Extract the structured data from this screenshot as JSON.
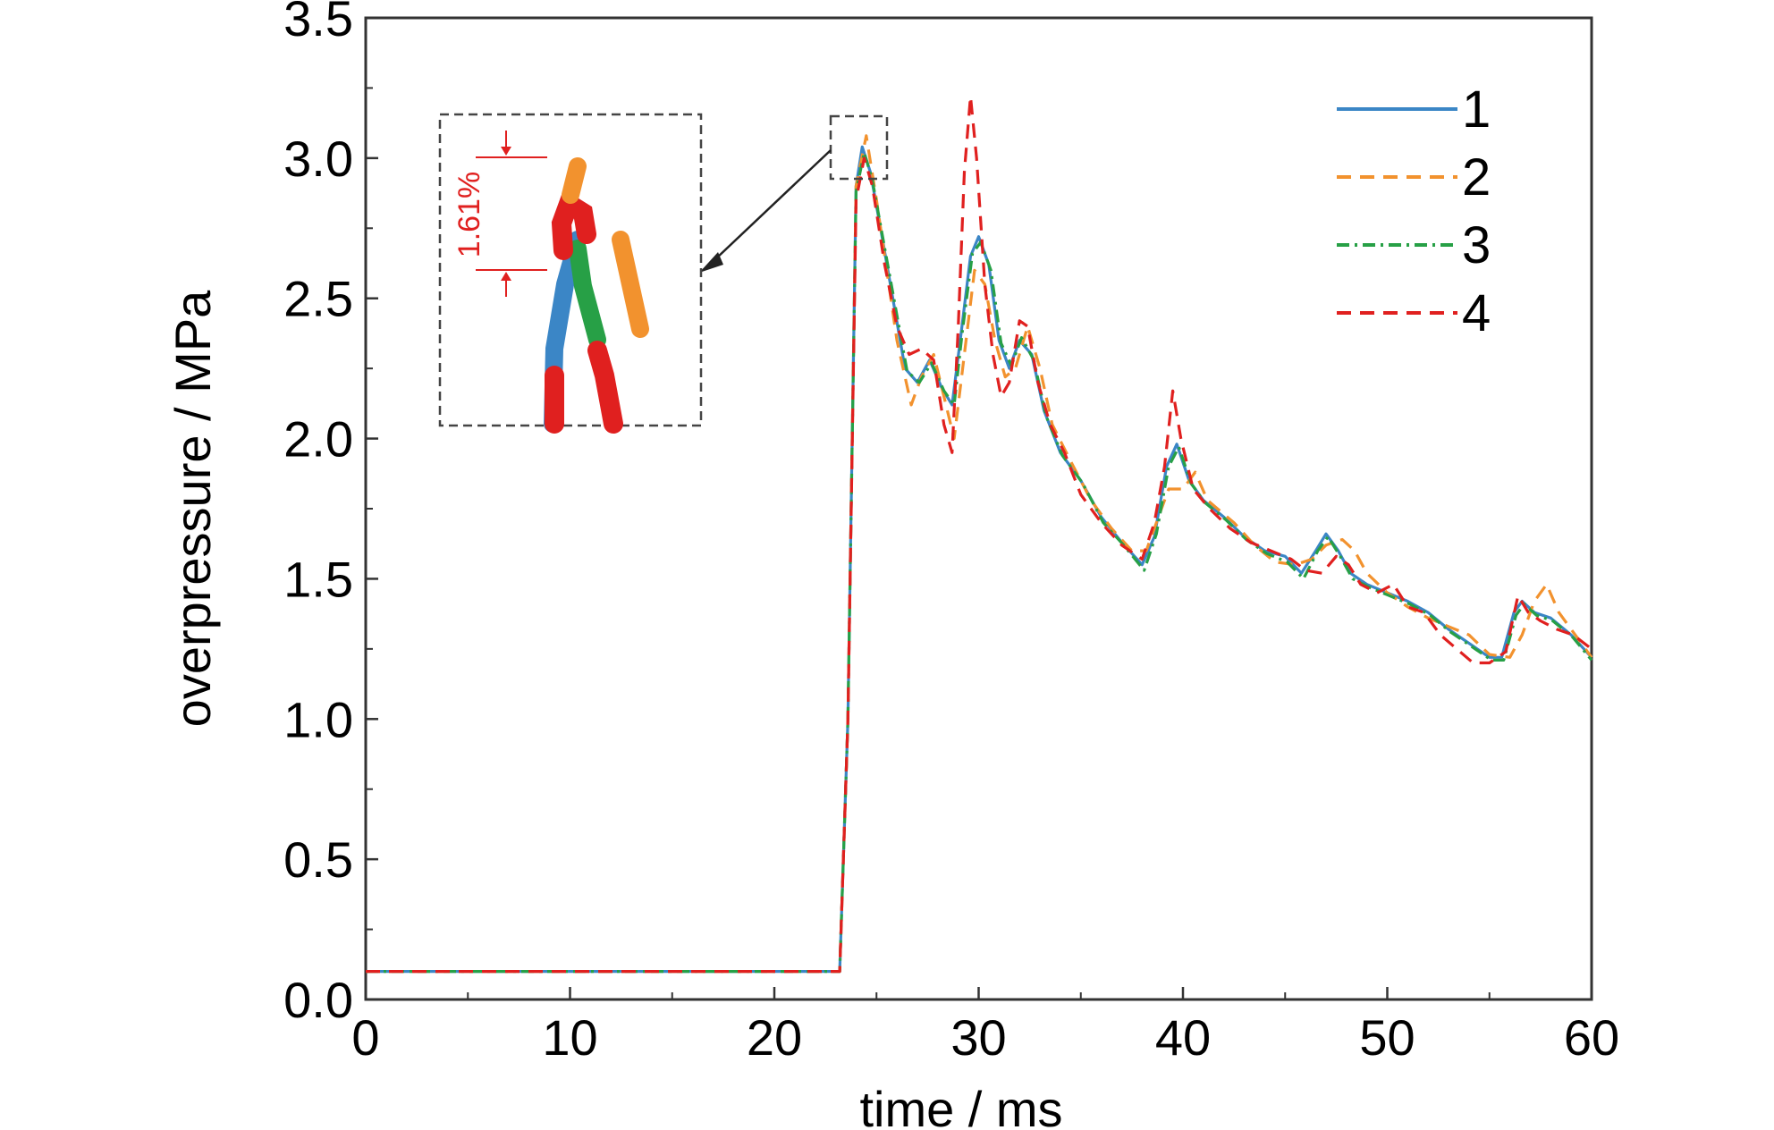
{
  "chart_data": {
    "type": "line",
    "xlabel": "time / ms",
    "ylabel": "overpressure / MPa",
    "xlim": [
      0,
      60
    ],
    "ylim": [
      0,
      3.5
    ],
    "xticks": [
      "0",
      "10",
      "20",
      "30",
      "40",
      "50",
      "60"
    ],
    "yticks": [
      "0.0",
      "0.5",
      "1.0",
      "1.5",
      "2.0",
      "2.5",
      "3.0",
      "3.5"
    ],
    "grid": false,
    "legend": "top-right",
    "series": [
      {
        "name": "1",
        "color": "#3b86c6",
        "dash": "solid",
        "points": [
          [
            0,
            0.1
          ],
          [
            23.2,
            0.1
          ],
          [
            23.6,
            1.0
          ],
          [
            24.0,
            2.9
          ],
          [
            24.3,
            3.04
          ],
          [
            24.7,
            2.95
          ],
          [
            25.2,
            2.75
          ],
          [
            25.8,
            2.5
          ],
          [
            26.4,
            2.25
          ],
          [
            27.0,
            2.2
          ],
          [
            27.6,
            2.28
          ],
          [
            28.2,
            2.18
          ],
          [
            28.7,
            2.12
          ],
          [
            29.1,
            2.35
          ],
          [
            29.6,
            2.65
          ],
          [
            30.0,
            2.72
          ],
          [
            30.5,
            2.62
          ],
          [
            31.0,
            2.35
          ],
          [
            31.5,
            2.25
          ],
          [
            32.0,
            2.35
          ],
          [
            32.6,
            2.3
          ],
          [
            33.2,
            2.1
          ],
          [
            34.0,
            1.95
          ],
          [
            35.0,
            1.85
          ],
          [
            36.0,
            1.72
          ],
          [
            37.0,
            1.63
          ],
          [
            38.0,
            1.55
          ],
          [
            38.6,
            1.65
          ],
          [
            39.2,
            1.9
          ],
          [
            39.7,
            1.98
          ],
          [
            40.3,
            1.85
          ],
          [
            41.0,
            1.78
          ],
          [
            42.0,
            1.72
          ],
          [
            43.0,
            1.65
          ],
          [
            44.0,
            1.6
          ],
          [
            45.0,
            1.58
          ],
          [
            45.8,
            1.52
          ],
          [
            46.5,
            1.6
          ],
          [
            47.0,
            1.66
          ],
          [
            47.6,
            1.6
          ],
          [
            48.2,
            1.52
          ],
          [
            49.0,
            1.48
          ],
          [
            50.0,
            1.45
          ],
          [
            51.0,
            1.42
          ],
          [
            52.0,
            1.38
          ],
          [
            53.0,
            1.32
          ],
          [
            54.0,
            1.27
          ],
          [
            55.0,
            1.22
          ],
          [
            55.6,
            1.22
          ],
          [
            56.2,
            1.38
          ],
          [
            56.6,
            1.42
          ],
          [
            57.2,
            1.38
          ],
          [
            58.0,
            1.36
          ],
          [
            59.0,
            1.3
          ],
          [
            60.0,
            1.22
          ]
        ]
      },
      {
        "name": "2",
        "color": "#f2922e",
        "dash": "dashed",
        "points": [
          [
            0,
            0.1
          ],
          [
            23.2,
            0.1
          ],
          [
            23.6,
            1.0
          ],
          [
            24.0,
            2.9
          ],
          [
            24.5,
            3.08
          ],
          [
            25.0,
            2.85
          ],
          [
            25.5,
            2.6
          ],
          [
            26.0,
            2.35
          ],
          [
            26.7,
            2.12
          ],
          [
            27.2,
            2.22
          ],
          [
            27.8,
            2.3
          ],
          [
            28.3,
            2.15
          ],
          [
            28.8,
            2.0
          ],
          [
            29.3,
            2.3
          ],
          [
            29.8,
            2.6
          ],
          [
            30.3,
            2.55
          ],
          [
            30.8,
            2.35
          ],
          [
            31.3,
            2.22
          ],
          [
            31.8,
            2.25
          ],
          [
            32.4,
            2.4
          ],
          [
            33.0,
            2.25
          ],
          [
            33.6,
            2.05
          ],
          [
            34.5,
            1.92
          ],
          [
            35.5,
            1.78
          ],
          [
            36.5,
            1.68
          ],
          [
            37.5,
            1.6
          ],
          [
            38.2,
            1.6
          ],
          [
            38.8,
            1.72
          ],
          [
            39.3,
            1.82
          ],
          [
            40.0,
            1.82
          ],
          [
            40.6,
            1.88
          ],
          [
            41.2,
            1.78
          ],
          [
            42.5,
            1.7
          ],
          [
            43.5,
            1.62
          ],
          [
            44.5,
            1.56
          ],
          [
            45.5,
            1.55
          ],
          [
            46.3,
            1.57
          ],
          [
            47.0,
            1.62
          ],
          [
            47.8,
            1.64
          ],
          [
            48.4,
            1.6
          ],
          [
            49.0,
            1.52
          ],
          [
            50.0,
            1.45
          ],
          [
            51.0,
            1.4
          ],
          [
            52.0,
            1.36
          ],
          [
            53.0,
            1.33
          ],
          [
            54.0,
            1.3
          ],
          [
            55.0,
            1.23
          ],
          [
            56.0,
            1.22
          ],
          [
            56.6,
            1.3
          ],
          [
            57.2,
            1.42
          ],
          [
            57.8,
            1.48
          ],
          [
            58.4,
            1.38
          ],
          [
            59.2,
            1.3
          ],
          [
            60.0,
            1.22
          ]
        ]
      },
      {
        "name": "3",
        "color": "#27a046",
        "dash": "dash-dot",
        "points": [
          [
            0,
            0.1
          ],
          [
            23.2,
            0.1
          ],
          [
            23.6,
            1.0
          ],
          [
            24.0,
            2.88
          ],
          [
            24.4,
            3.02
          ],
          [
            24.8,
            2.92
          ],
          [
            25.3,
            2.72
          ],
          [
            25.9,
            2.48
          ],
          [
            26.5,
            2.24
          ],
          [
            27.1,
            2.2
          ],
          [
            27.7,
            2.27
          ],
          [
            28.3,
            2.17
          ],
          [
            28.8,
            2.12
          ],
          [
            29.2,
            2.38
          ],
          [
            29.7,
            2.66
          ],
          [
            30.1,
            2.7
          ],
          [
            30.6,
            2.6
          ],
          [
            31.1,
            2.34
          ],
          [
            31.6,
            2.26
          ],
          [
            32.1,
            2.36
          ],
          [
            32.7,
            2.28
          ],
          [
            33.3,
            2.08
          ],
          [
            34.1,
            1.94
          ],
          [
            35.1,
            1.84
          ],
          [
            36.1,
            1.7
          ],
          [
            37.1,
            1.62
          ],
          [
            38.1,
            1.53
          ],
          [
            38.7,
            1.66
          ],
          [
            39.3,
            1.9
          ],
          [
            39.8,
            1.97
          ],
          [
            40.4,
            1.84
          ],
          [
            41.1,
            1.77
          ],
          [
            42.1,
            1.71
          ],
          [
            43.1,
            1.64
          ],
          [
            44.1,
            1.59
          ],
          [
            45.1,
            1.56
          ],
          [
            45.9,
            1.5
          ],
          [
            46.6,
            1.6
          ],
          [
            47.1,
            1.65
          ],
          [
            47.7,
            1.58
          ],
          [
            48.3,
            1.5
          ],
          [
            49.1,
            1.47
          ],
          [
            50.1,
            1.44
          ],
          [
            51.1,
            1.41
          ],
          [
            52.1,
            1.37
          ],
          [
            53.1,
            1.31
          ],
          [
            54.1,
            1.26
          ],
          [
            55.1,
            1.21
          ],
          [
            55.7,
            1.21
          ],
          [
            56.3,
            1.37
          ],
          [
            56.7,
            1.41
          ],
          [
            57.3,
            1.37
          ],
          [
            58.1,
            1.35
          ],
          [
            59.1,
            1.29
          ],
          [
            60.0,
            1.21
          ]
        ]
      },
      {
        "name": "4",
        "color": "#e0201f",
        "dash": "dashed",
        "points": [
          [
            0,
            0.1
          ],
          [
            23.2,
            0.1
          ],
          [
            23.6,
            1.0
          ],
          [
            24.0,
            2.85
          ],
          [
            24.4,
            3.0
          ],
          [
            24.8,
            2.9
          ],
          [
            25.4,
            2.62
          ],
          [
            26.0,
            2.4
          ],
          [
            26.6,
            2.3
          ],
          [
            27.2,
            2.32
          ],
          [
            27.8,
            2.28
          ],
          [
            28.3,
            2.05
          ],
          [
            28.7,
            1.95
          ],
          [
            29.0,
            2.4
          ],
          [
            29.3,
            2.95
          ],
          [
            29.6,
            3.22
          ],
          [
            29.9,
            3.0
          ],
          [
            30.3,
            2.55
          ],
          [
            30.7,
            2.3
          ],
          [
            31.1,
            2.15
          ],
          [
            31.5,
            2.2
          ],
          [
            32.0,
            2.42
          ],
          [
            32.4,
            2.4
          ],
          [
            32.9,
            2.2
          ],
          [
            33.5,
            2.05
          ],
          [
            34.2,
            1.95
          ],
          [
            35.0,
            1.8
          ],
          [
            36.0,
            1.7
          ],
          [
            37.0,
            1.62
          ],
          [
            38.0,
            1.57
          ],
          [
            38.6,
            1.7
          ],
          [
            39.1,
            1.9
          ],
          [
            39.5,
            2.17
          ],
          [
            39.9,
            2.0
          ],
          [
            40.5,
            1.82
          ],
          [
            41.3,
            1.75
          ],
          [
            42.3,
            1.68
          ],
          [
            43.3,
            1.63
          ],
          [
            44.3,
            1.6
          ],
          [
            45.3,
            1.57
          ],
          [
            46.0,
            1.53
          ],
          [
            46.8,
            1.52
          ],
          [
            47.5,
            1.58
          ],
          [
            48.1,
            1.55
          ],
          [
            48.7,
            1.48
          ],
          [
            49.5,
            1.45
          ],
          [
            50.3,
            1.48
          ],
          [
            51.0,
            1.4
          ],
          [
            51.8,
            1.38
          ],
          [
            52.6,
            1.3
          ],
          [
            53.4,
            1.25
          ],
          [
            54.2,
            1.2
          ],
          [
            55.0,
            1.2
          ],
          [
            55.8,
            1.24
          ],
          [
            56.4,
            1.44
          ],
          [
            56.9,
            1.38
          ],
          [
            57.5,
            1.35
          ],
          [
            58.3,
            1.32
          ],
          [
            59.1,
            1.3
          ],
          [
            60.0,
            1.25
          ]
        ]
      }
    ],
    "annotations": [
      {
        "text": "1.61%",
        "type": "inset-zoom",
        "target_x": 24.4,
        "target_y": 3.04
      }
    ]
  }
}
